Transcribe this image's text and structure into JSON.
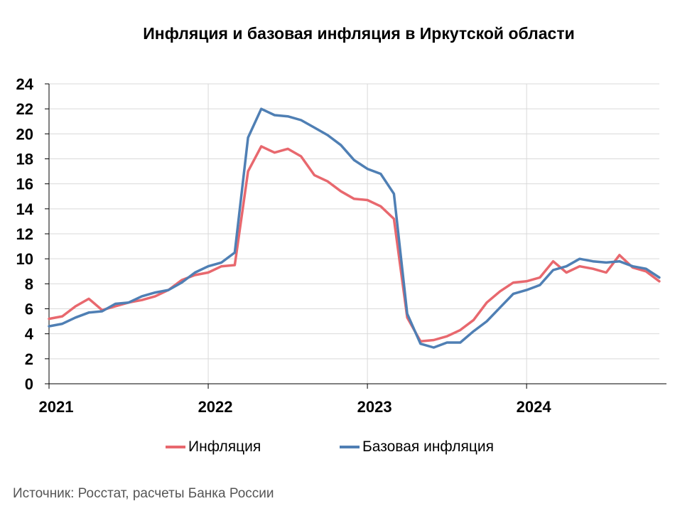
{
  "chart_data": {
    "type": "line",
    "title": "Инфляция и базовая инфляция в Иркутской области",
    "xlabel": "",
    "ylabel": "",
    "ylim": [
      0,
      24
    ],
    "yticks": [
      0,
      2,
      4,
      6,
      8,
      10,
      12,
      14,
      16,
      18,
      20,
      22,
      24
    ],
    "xlim": [
      2021,
      2024.834
    ],
    "xticks": [
      {
        "value": 2021,
        "label": "2021"
      },
      {
        "value": 2022,
        "label": "2022"
      },
      {
        "value": 2023,
        "label": "2023"
      },
      {
        "value": 2024,
        "label": "2024"
      }
    ],
    "grid": true,
    "legend": "bottom",
    "x_start": "2021-01",
    "x_step": "month",
    "series": [
      {
        "name": "Инфляция",
        "color": "#e8686e",
        "values": [
          5.2,
          5.4,
          6.2,
          6.8,
          5.9,
          6.2,
          6.5,
          6.7,
          7.0,
          7.5,
          8.3,
          8.7,
          8.9,
          9.4,
          9.5,
          17.0,
          19.0,
          18.5,
          18.8,
          18.2,
          16.7,
          16.2,
          15.4,
          14.8,
          14.7,
          14.2,
          13.2,
          5.3,
          3.4,
          3.5,
          3.8,
          4.3,
          5.1,
          6.5,
          7.4,
          8.1,
          8.2,
          8.5,
          9.8,
          8.9,
          9.4,
          9.2,
          8.9,
          10.3,
          9.3,
          9.0,
          8.2
        ],
        "x_start_index": 0
      },
      {
        "name": "Базовая инфляция",
        "color": "#4f7fb4",
        "values": [
          4.6,
          4.8,
          5.3,
          5.7,
          5.8,
          6.4,
          6.5,
          7.0,
          7.3,
          7.5,
          8.1,
          8.9,
          9.4,
          9.7,
          10.5,
          19.7,
          22.0,
          21.5,
          21.4,
          21.1,
          20.5,
          19.9,
          19.1,
          17.9,
          17.2,
          16.8,
          15.2,
          5.6,
          3.2,
          2.9,
          3.3,
          3.3,
          4.2,
          5.0,
          6.1,
          7.2,
          7.5,
          7.9,
          9.1,
          9.4,
          10.0,
          9.8,
          9.7,
          9.8,
          9.4,
          9.2,
          8.5
        ],
        "x_start_index": 0
      }
    ]
  },
  "source": "Источник: Росстат, расчеты Банка России",
  "axis_color": "#000000",
  "grid_color": "#d9d9d9"
}
